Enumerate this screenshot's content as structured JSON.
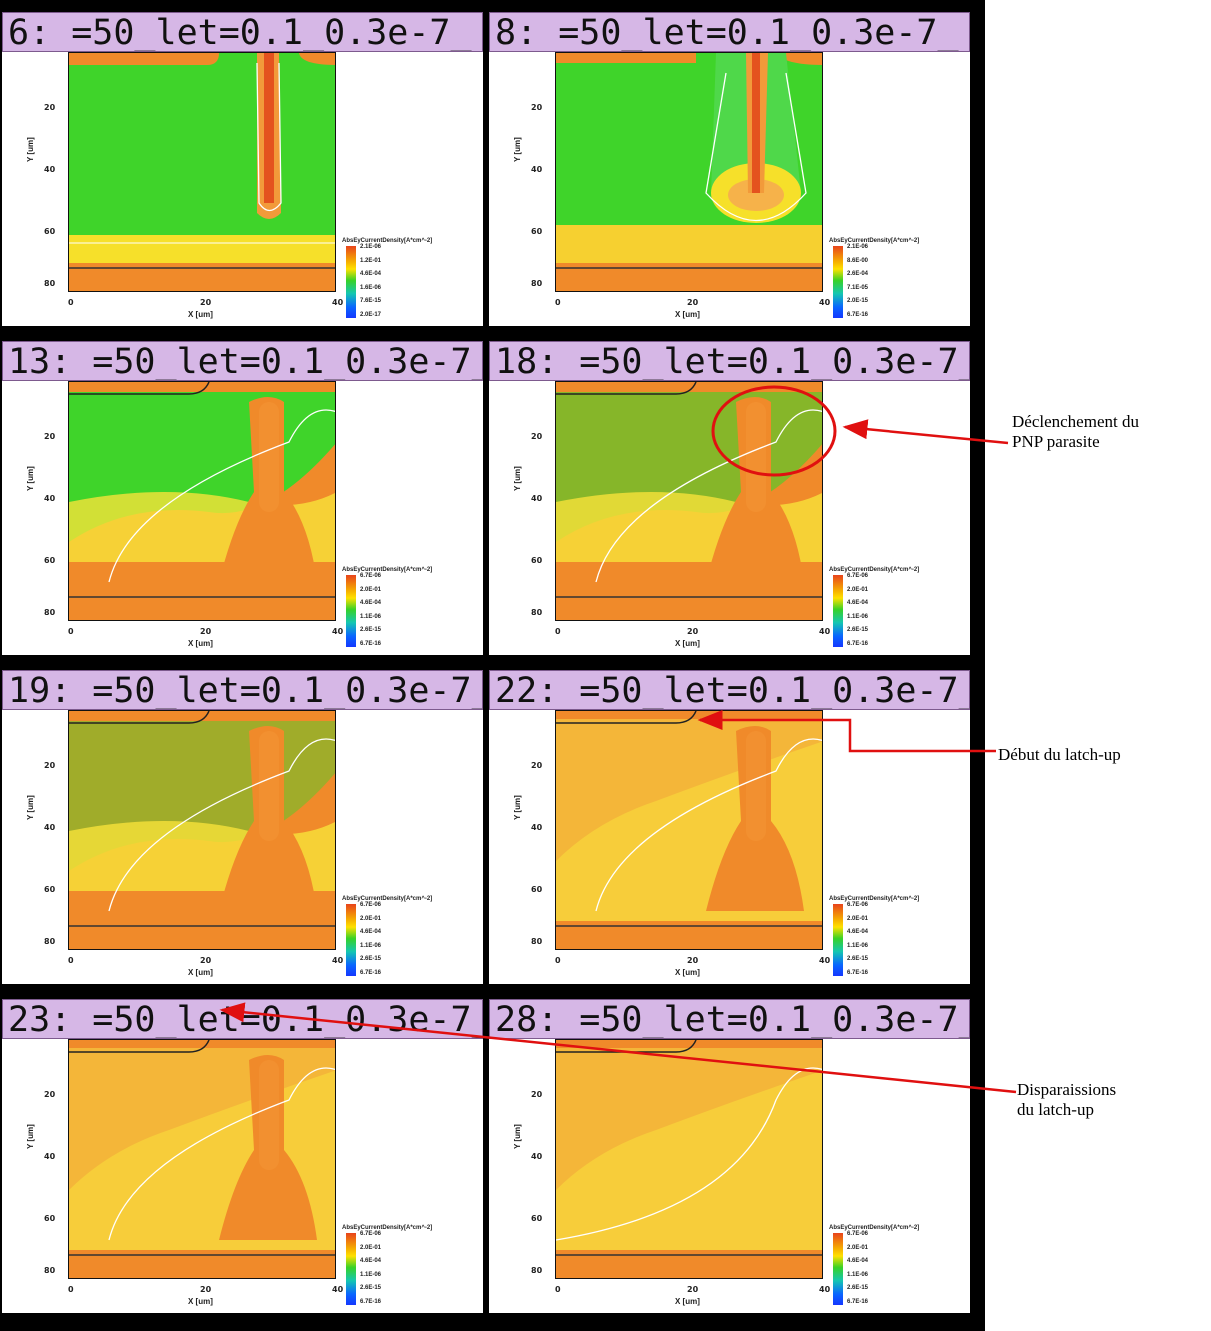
{
  "panels": [
    {
      "title": "6: =50_let=0.1_0.3e-7_",
      "legend": [
        "2.1E-06",
        "1.2E-01",
        "4.6E-04",
        "1.6E-06",
        "7.6E-15",
        "2.0E-17"
      ]
    },
    {
      "title": "8: =50_let=0.1_0.3e-7_",
      "legend": [
        "2.1E-06",
        "8.6E-00",
        "2.6E-04",
        "7.1E-05",
        "2.0E-15",
        "6.7E-16"
      ]
    },
    {
      "title": "13: =50_let=0.1_0.3e-7_",
      "legend": [
        "6.7E-06",
        "2.0E-01",
        "4.6E-04",
        "1.1E-06",
        "2.6E-15",
        "6.7E-16"
      ]
    },
    {
      "title": "18: =50_let=0.1_0.3e-7_",
      "legend": [
        "6.7E-06",
        "2.0E-01",
        "4.6E-04",
        "1.1E-06",
        "2.6E-15",
        "6.7E-16"
      ]
    },
    {
      "title": "19: =50_let=0.1_0.3e-7_",
      "legend": [
        "6.7E-06",
        "2.0E-01",
        "4.6E-04",
        "1.1E-06",
        "2.6E-15",
        "6.7E-16"
      ]
    },
    {
      "title": "22: =50_let=0.1_0.3e-7_",
      "legend": [
        "6.7E-06",
        "2.0E-01",
        "4.6E-04",
        "1.1E-06",
        "2.6E-15",
        "6.7E-16"
      ]
    },
    {
      "title": "23: =50_let=0.1_0.3e-7_",
      "legend": [
        "6.7E-06",
        "2.0E-01",
        "4.6E-04",
        "1.1E-06",
        "2.6E-15",
        "6.7E-16"
      ]
    },
    {
      "title": "28: =50_let=0.1_0.3e-7_",
      "legend": [
        "6.7E-06",
        "2.0E-01",
        "4.6E-04",
        "1.1E-06",
        "2.6E-15",
        "6.7E-16"
      ]
    }
  ],
  "axes": {
    "ylabel": "Y [um]",
    "xlabel": "X [um]",
    "yticks": [
      "20",
      "40",
      "60",
      "80"
    ],
    "xticks": [
      "0",
      "20",
      "40"
    ],
    "legend_title": "AbsEyCurrentDensity[A*cm^-2]"
  },
  "annotations": {
    "pnp": "Déclenchement du\nPNP parasite",
    "debut": "Début du latch-up",
    "disparition": "Disparaissions\ndu latch-up"
  },
  "colors": {
    "title_bg": "#d6b7e6",
    "arrow": "#e01010"
  }
}
